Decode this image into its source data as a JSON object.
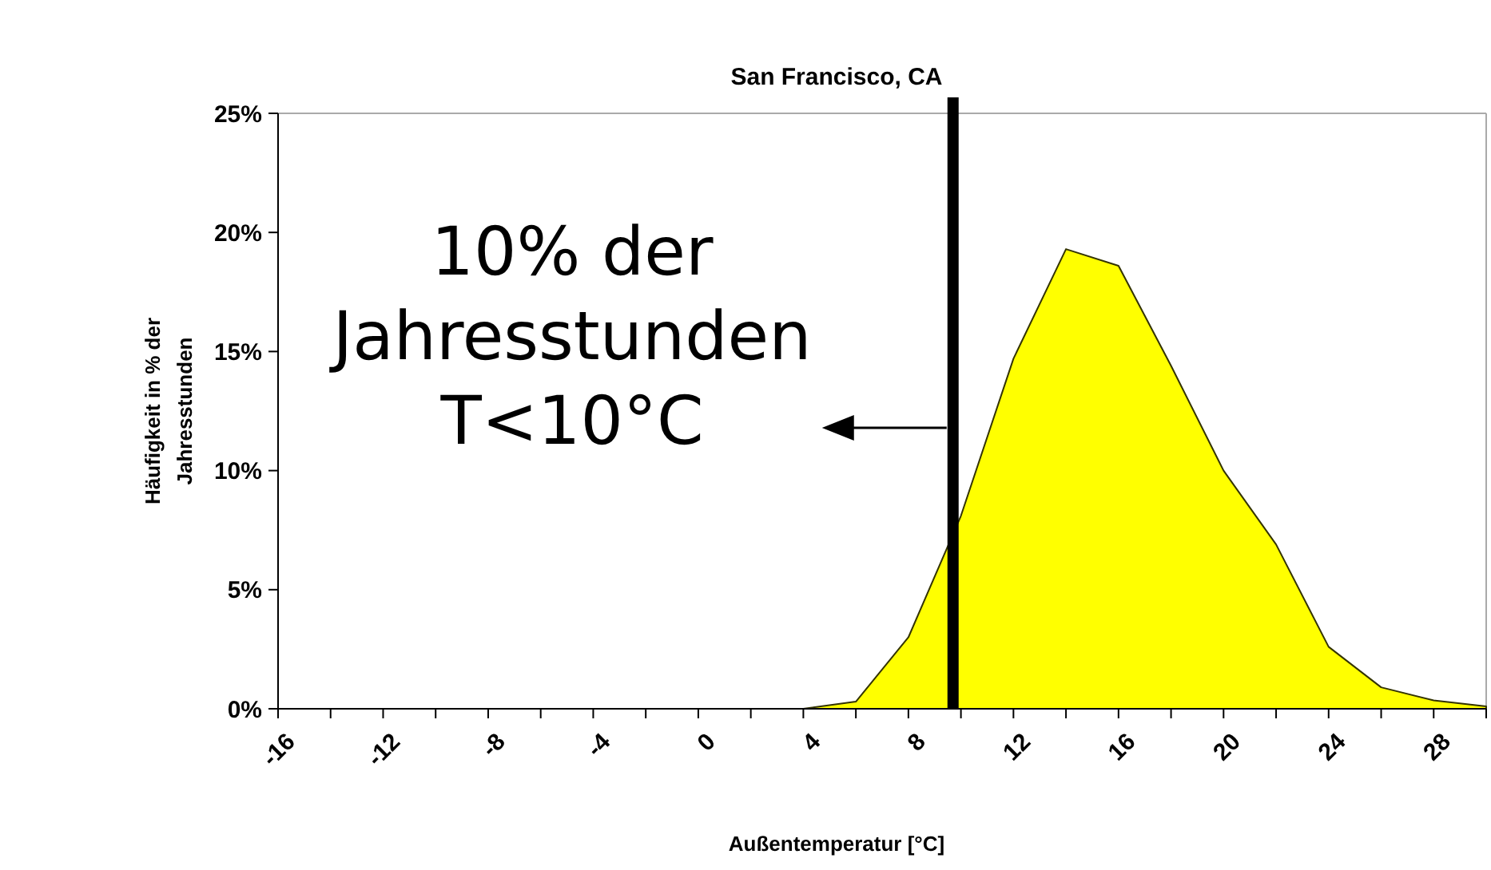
{
  "chart_data": {
    "type": "area",
    "title": "San Francisco, CA",
    "xlabel": "Außentemperatur [°C]",
    "ylabel": "Häufigkeit in % der\nJahresstunden",
    "x": [
      -16,
      -14,
      -12,
      -10,
      -8,
      -6,
      -4,
      -2,
      0,
      2,
      4,
      6,
      8,
      10,
      12,
      14,
      16,
      18,
      20,
      22,
      24,
      26,
      28,
      30
    ],
    "series": [
      {
        "color": "#ffff00",
        "values": [
          0,
          0,
          0,
          0,
          0,
          0,
          0,
          0,
          0,
          0,
          0,
          0.3,
          3.0,
          8.1,
          14.7,
          19.3,
          18.6,
          14.4,
          10.0,
          6.9,
          2.6,
          0.9,
          0.35,
          0.1
        ]
      }
    ],
    "xlim": [
      -16,
      30
    ],
    "xticks": [
      -16,
      {
        "value": -14,
        "label": null
      },
      -12,
      {
        "value": -10,
        "label": null
      },
      -8,
      {
        "value": -6,
        "label": null
      },
      -4,
      {
        "value": -2,
        "label": null
      },
      0,
      {
        "value": 2,
        "label": null
      },
      4,
      {
        "value": 6,
        "label": null
      },
      8,
      {
        "value": 10,
        "label": null
      },
      12,
      {
        "value": 14,
        "label": null
      },
      16,
      {
        "value": 18,
        "label": null
      },
      20,
      {
        "value": 22,
        "label": null
      },
      24,
      {
        "value": 26,
        "label": null
      },
      28,
      {
        "value": 30,
        "label": null
      }
    ],
    "ylim": [
      0,
      25
    ],
    "yticks": [
      {
        "value": 0,
        "label": "0%"
      },
      {
        "value": 5,
        "label": "5%"
      },
      {
        "value": 10,
        "label": "10%"
      },
      {
        "value": 15,
        "label": "15%"
      },
      {
        "value": 20,
        "label": "20%"
      },
      {
        "value": 25,
        "label": "25%"
      }
    ],
    "ref_lines": [
      {
        "axis": "x",
        "value": 9.7,
        "color": "#000000"
      }
    ],
    "annotations": [
      {
        "text": "10% der\nJahresstunden\nT<10°C",
        "x": 9.7,
        "y": 11.8
      }
    ],
    "grid": false
  }
}
